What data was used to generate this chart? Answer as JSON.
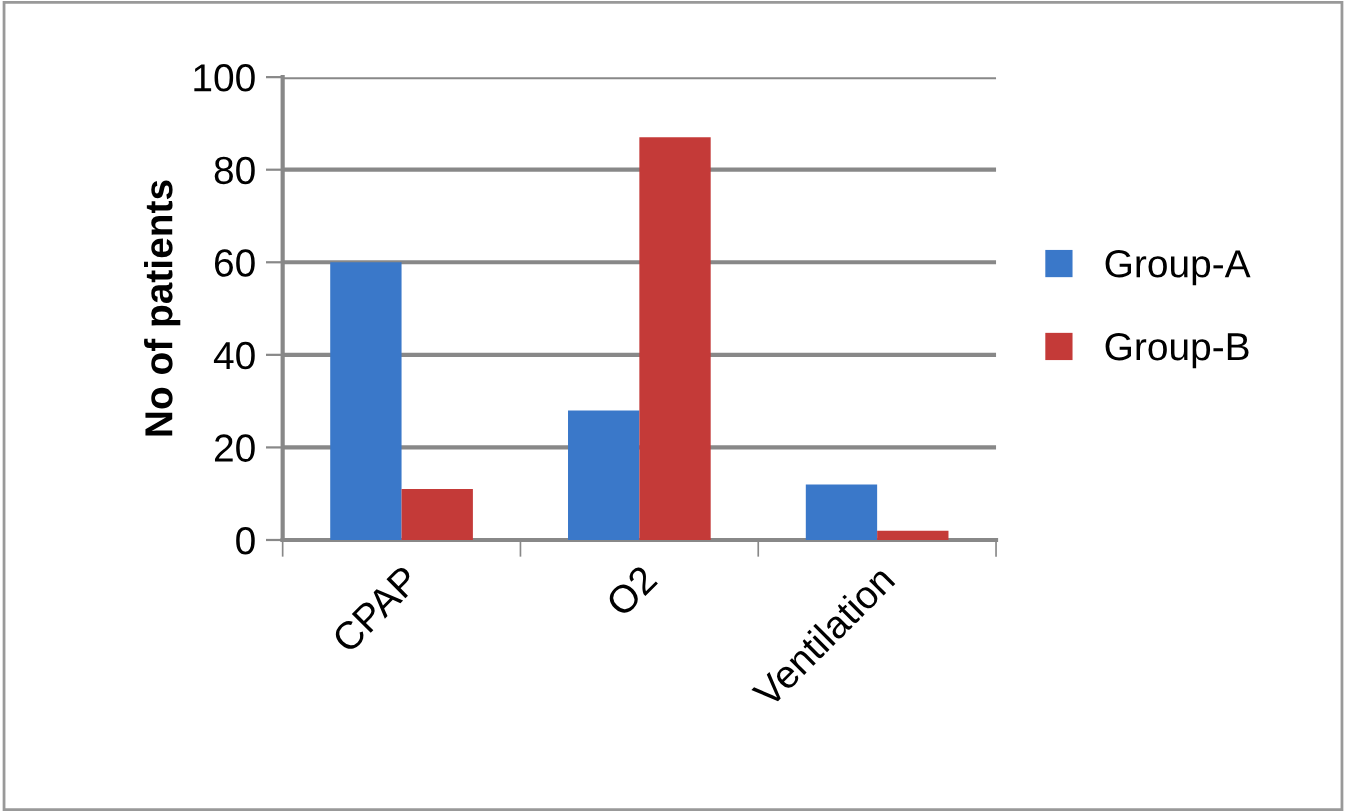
{
  "chart_data": {
    "type": "bar",
    "ylabel": "No of patients",
    "categories": [
      "CPAP",
      "O2",
      "Ventilation"
    ],
    "series": [
      {
        "name": "Group-A",
        "color": "#3a78c9",
        "values": [
          60,
          28,
          12
        ]
      },
      {
        "name": "Group-B",
        "color": "#c43a38",
        "values": [
          11,
          87,
          2
        ]
      }
    ],
    "ylim": [
      0,
      100
    ],
    "yticks": [
      0,
      20,
      40,
      60,
      80,
      100
    ],
    "grid": "y",
    "legend": "right"
  }
}
